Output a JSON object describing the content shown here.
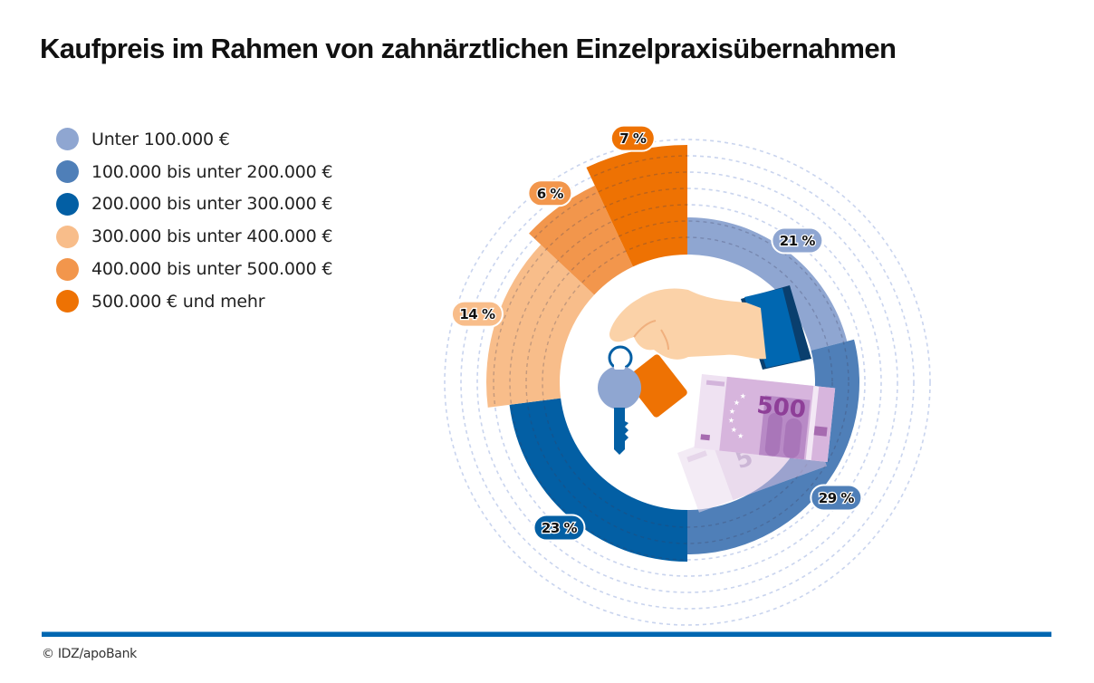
{
  "title": "Kaufpreis im Rahmen von zahnärztlichen Einzelpraxisübernahmen",
  "source": "© IDZ/apoBank",
  "illustration": {
    "icons": [
      "hand-icon",
      "key-icon",
      "key-tag-icon",
      "euro-banknote-500-icon"
    ],
    "banknote_value": "500"
  },
  "chart_data": {
    "type": "pie",
    "subtype": "variable-radius donut (rose)",
    "title": "Kaufpreis im Rahmen von zahnärztlichen Einzelpraxisübernahmen",
    "unit": "%",
    "categories": [
      "Unter 100.000 €",
      "100.000 bis unter 200.000 €",
      "200.000 bis unter 300.000 €",
      "300.000 bis unter 400.000 €",
      "400.000 bis unter 500.000 €",
      "500.000 € und mehr"
    ],
    "values": [
      21,
      29,
      23,
      14,
      6,
      7
    ],
    "labels": [
      "21 %",
      "29 %",
      "23 %",
      "14 %",
      "6 %",
      "7 %"
    ],
    "colors": [
      "#8fa6d1",
      "#4f7fb8",
      "#035fa4",
      "#f8bd8a",
      "#f2964c",
      "#ee7203"
    ],
    "start": "12 o'clock, clockwise",
    "legend_position": "left"
  }
}
